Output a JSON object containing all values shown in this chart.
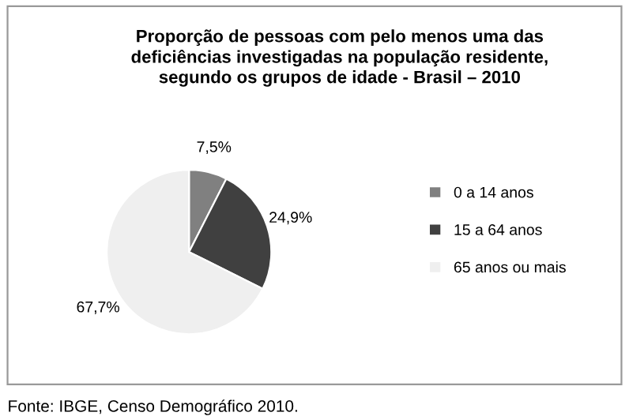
{
  "chart_data": {
    "type": "pie",
    "title": "Proporção de pessoas com pelo menos uma das\ndeficiências investigadas na população residente,\nsegundo os grupos de idade - Brasil – 2010",
    "categories": [
      "0 a 14 anos",
      "15 a 64 anos",
      "65 anos ou mais"
    ],
    "values": [
      7.5,
      24.9,
      67.7
    ],
    "colors": [
      "#808080",
      "#404040",
      "#efefef"
    ],
    "value_labels": [
      "7,5%",
      "24,9%",
      "67,7%"
    ],
    "legend": "right",
    "annotations": [
      "Fonte: IBGE, Censo Demográfico 2010."
    ]
  }
}
